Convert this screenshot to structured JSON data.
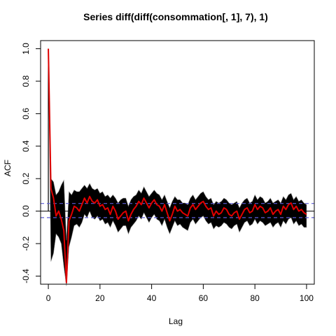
{
  "chart_data": {
    "type": "line",
    "title": "Series  diff(diff(consommation[, 1], 7), 1)",
    "xlabel": "Lag",
    "ylabel": "ACF",
    "xlim": [
      -3,
      103
    ],
    "ylim": [
      -0.45,
      1.05
    ],
    "xticks": [
      0,
      20,
      40,
      60,
      80,
      100
    ],
    "yticks": [
      -0.4,
      -0.2,
      0.0,
      0.2,
      0.4,
      0.6,
      0.8,
      1.0
    ],
    "xtick_labels": [
      "0",
      "20",
      "40",
      "60",
      "80",
      "100"
    ],
    "ytick_labels": [
      "-0.4",
      "-0.2",
      "0.0",
      "0.2",
      "0.4",
      "0.6",
      "0.8",
      "1.0"
    ],
    "confidence_bounds": [
      0.047,
      -0.04
    ],
    "zero_line": 0,
    "grid": false,
    "colors": {
      "band": "#000000",
      "band_edge": "#7f7f7f",
      "mean_line": "#e00000",
      "confidence": "#5b5bd6"
    },
    "series": [
      {
        "x": [
          0,
          1,
          2,
          3,
          4,
          5,
          6,
          7,
          8,
          9,
          10,
          11,
          12,
          13,
          14,
          15,
          16,
          17,
          18,
          19,
          20,
          21,
          22,
          23,
          24,
          25,
          26,
          27,
          28,
          29,
          30,
          31,
          32,
          33,
          34,
          35,
          36,
          37,
          38,
          39,
          40,
          41,
          42,
          43,
          44,
          45,
          46,
          47,
          48,
          49,
          50,
          51,
          52,
          53,
          54,
          55,
          56,
          57,
          58,
          59,
          60,
          61,
          62,
          63,
          64,
          65,
          66,
          67,
          68,
          69,
          70,
          71,
          72,
          73,
          74,
          75,
          76,
          77,
          78,
          79,
          80,
          81,
          82,
          83,
          84,
          85,
          86,
          87,
          88,
          89,
          90,
          91,
          92,
          93,
          94,
          95,
          96,
          97,
          98,
          99,
          100
        ],
        "values": [
          1.0,
          0.14,
          0.08,
          -0.03,
          0.0,
          -0.05,
          -0.12,
          -0.44,
          -0.06,
          -0.02,
          0.03,
          0.02,
          0.0,
          0.04,
          0.08,
          0.05,
          0.09,
          0.06,
          0.05,
          0.07,
          0.03,
          0.04,
          0.01,
          0.02,
          -0.02,
          0.03,
          0.0,
          -0.05,
          -0.03,
          -0.01,
          0.0,
          -0.06,
          -0.02,
          0.01,
          0.03,
          0.06,
          0.04,
          0.08,
          0.05,
          0.02,
          0.05,
          0.07,
          0.04,
          0.03,
          0.0,
          0.04,
          -0.01,
          -0.06,
          -0.02,
          0.03,
          0.0,
          0.01,
          -0.01,
          -0.02,
          -0.03,
          0.02,
          0.04,
          0.01,
          0.03,
          0.05,
          0.06,
          0.03,
          0.01,
          0.02,
          -0.03,
          0.0,
          -0.02,
          -0.01,
          0.02,
          0.01,
          -0.02,
          -0.03,
          -0.01,
          0.0,
          -0.05,
          -0.02,
          0.01,
          0.02,
          -0.01,
          0.0,
          0.04,
          0.01,
          0.03,
          0.02,
          -0.01,
          0.0,
          0.02,
          -0.02,
          0.0,
          0.01,
          -0.02,
          0.03,
          0.01,
          0.04,
          0.05,
          0.01,
          0.03,
          0.0,
          0.01,
          -0.01,
          -0.02
        ]
      },
      {
        "x": [
          0,
          1,
          2,
          3,
          4,
          5,
          6,
          7,
          8,
          9,
          10,
          11,
          12,
          13,
          14,
          15,
          16,
          17,
          18,
          19,
          20,
          21,
          22,
          23,
          24,
          25,
          26,
          27,
          28,
          29,
          30,
          31,
          32,
          33,
          34,
          35,
          36,
          37,
          38,
          39,
          40,
          41,
          42,
          43,
          44,
          45,
          46,
          47,
          48,
          49,
          50,
          51,
          52,
          53,
          54,
          55,
          56,
          57,
          58,
          59,
          60,
          61,
          62,
          63,
          64,
          65,
          66,
          67,
          68,
          69,
          70,
          71,
          72,
          73,
          74,
          75,
          76,
          77,
          78,
          79,
          80,
          81,
          82,
          83,
          84,
          85,
          86,
          87,
          88,
          89,
          90,
          91,
          92,
          93,
          94,
          95,
          96,
          97,
          98,
          99,
          100
        ],
        "upper": [
          1.0,
          0.2,
          0.18,
          0.1,
          0.12,
          0.16,
          0.19,
          -0.18,
          0.12,
          0.1,
          0.13,
          0.12,
          0.12,
          0.14,
          0.16,
          0.14,
          0.17,
          0.14,
          0.13,
          0.14,
          0.11,
          0.12,
          0.09,
          0.1,
          0.08,
          0.1,
          0.08,
          0.05,
          0.07,
          0.08,
          0.08,
          0.03,
          0.07,
          0.09,
          0.1,
          0.13,
          0.11,
          0.15,
          0.12,
          0.09,
          0.11,
          0.13,
          0.11,
          0.1,
          0.07,
          0.1,
          0.06,
          0.02,
          0.06,
          0.09,
          0.07,
          0.07,
          0.05,
          0.05,
          0.04,
          0.08,
          0.1,
          0.07,
          0.09,
          0.11,
          0.12,
          0.09,
          0.07,
          0.08,
          0.04,
          0.06,
          0.05,
          0.06,
          0.08,
          0.07,
          0.05,
          0.04,
          0.05,
          0.06,
          0.02,
          0.05,
          0.07,
          0.08,
          0.05,
          0.06,
          0.1,
          0.07,
          0.09,
          0.08,
          0.05,
          0.06,
          0.08,
          0.05,
          0.06,
          0.07,
          0.05,
          0.09,
          0.07,
          0.1,
          0.11,
          0.07,
          0.09,
          0.06,
          0.07,
          0.05,
          0.04
        ],
        "lower": [
          1.0,
          -0.31,
          -0.26,
          -0.14,
          -0.16,
          -0.2,
          -0.34,
          -0.46,
          -0.22,
          -0.16,
          -0.09,
          -0.08,
          -0.1,
          -0.07,
          -0.02,
          -0.04,
          0.0,
          -0.04,
          -0.05,
          -0.03,
          -0.06,
          -0.05,
          -0.08,
          -0.07,
          -0.1,
          -0.06,
          -0.09,
          -0.13,
          -0.11,
          -0.09,
          -0.09,
          -0.14,
          -0.1,
          -0.08,
          -0.06,
          -0.03,
          -0.05,
          -0.01,
          -0.04,
          -0.07,
          -0.04,
          -0.02,
          -0.05,
          -0.06,
          -0.09,
          -0.05,
          -0.1,
          -0.14,
          -0.1,
          -0.06,
          -0.09,
          -0.08,
          -0.1,
          -0.11,
          -0.12,
          -0.07,
          -0.05,
          -0.08,
          -0.06,
          -0.04,
          -0.03,
          -0.06,
          -0.08,
          -0.07,
          -0.11,
          -0.09,
          -0.1,
          -0.09,
          -0.07,
          -0.08,
          -0.1,
          -0.11,
          -0.09,
          -0.08,
          -0.13,
          -0.1,
          -0.07,
          -0.06,
          -0.09,
          -0.08,
          -0.05,
          -0.08,
          -0.06,
          -0.07,
          -0.09,
          -0.08,
          -0.07,
          -0.1,
          -0.08,
          -0.07,
          -0.1,
          -0.06,
          -0.08,
          -0.05,
          -0.04,
          -0.08,
          -0.06,
          -0.09,
          -0.08,
          -0.1,
          -0.1
        ]
      }
    ]
  }
}
